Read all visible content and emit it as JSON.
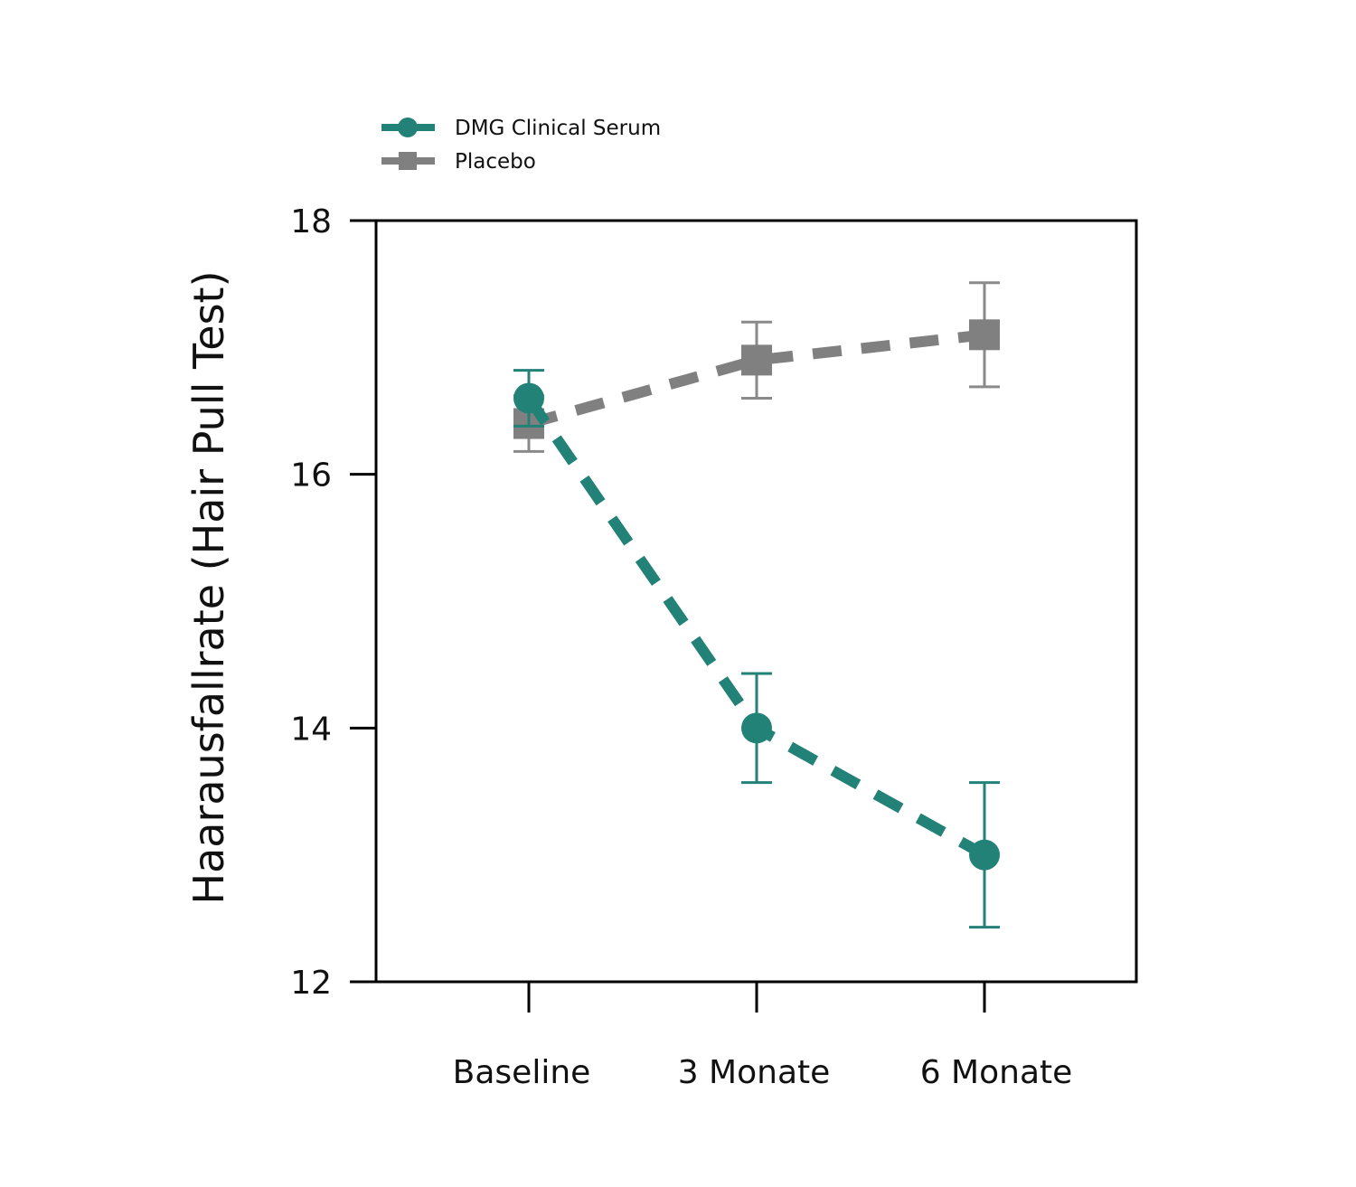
{
  "chart_data": {
    "type": "line",
    "title": "",
    "xlabel": "",
    "ylabel": "Haarausfallrate (Hair Pull Test)",
    "categories": [
      "Baseline",
      "3 Monate",
      "6 Monate"
    ],
    "ylim": [
      12,
      18
    ],
    "yticks": [
      12,
      14,
      16,
      18
    ],
    "grid": false,
    "legend": "top-left, outside above plot",
    "series": [
      {
        "name": "DMG Clinical Serum",
        "color": "#238277",
        "marker": "circle",
        "linestyle": "dashed",
        "values": [
          16.6,
          14.0,
          13.0
        ],
        "error": [
          0.22,
          0.43,
          0.57
        ]
      },
      {
        "name": "Placebo",
        "color": "#808080",
        "marker": "square",
        "linestyle": "dashed",
        "values": [
          16.4,
          16.9,
          17.1
        ],
        "error": [
          0.22,
          0.3,
          0.41
        ]
      }
    ]
  }
}
